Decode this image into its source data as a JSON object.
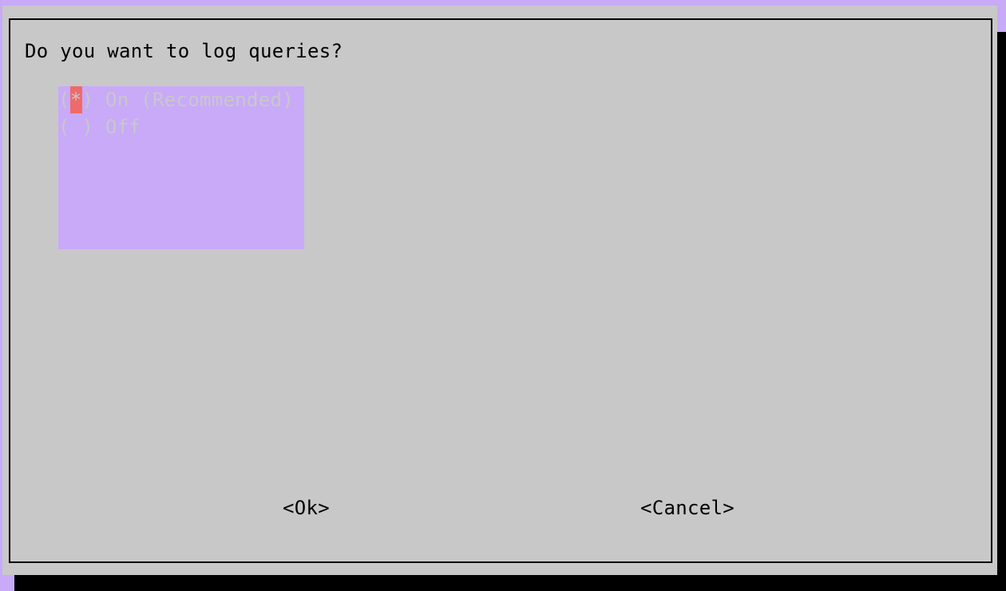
{
  "dialog": {
    "question": "Do you want to log queries?",
    "options": [
      {
        "open": "(",
        "mark": "*",
        "close": ")",
        "label": "On (Recommended)",
        "selected": true
      },
      {
        "open": "(",
        "mark": " ",
        "close": ")",
        "label": "Off",
        "selected": false
      }
    ],
    "buttons": {
      "ok": "<Ok>",
      "cancel": "<Cancel>"
    }
  },
  "colors": {
    "background": "#c8aaf8",
    "dialog": "#c8c8c8",
    "list_highlight": "#c8aaf8",
    "cursor": "#f06a6a",
    "text": "#000000",
    "shadow": "#000000"
  }
}
